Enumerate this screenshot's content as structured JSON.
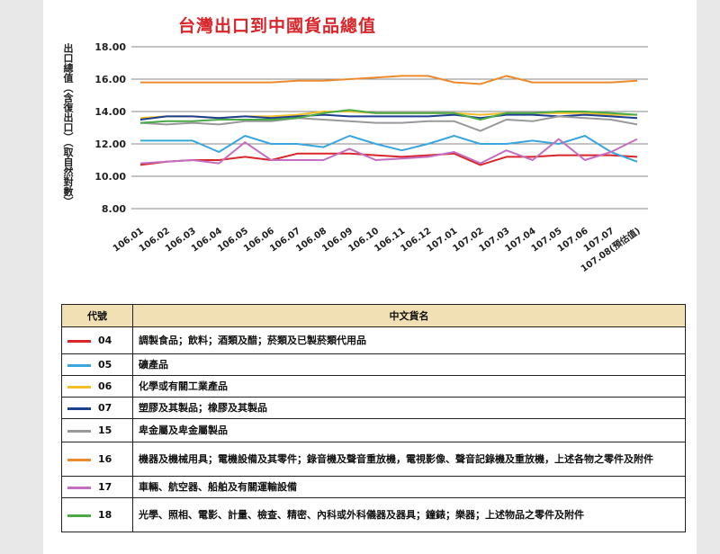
{
  "chart_data": {
    "type": "line",
    "title": "台灣出口到中國貨品總值",
    "ylabel": "出口總值（含復出口）（取自然對數）",
    "ylim": [
      6.0,
      18.0
    ],
    "yticks": [
      "18.00",
      "16.00",
      "14.00",
      "12.00",
      "10.00",
      "8.00"
    ],
    "ytick_values": [
      18,
      16,
      14,
      12,
      10,
      8
    ],
    "categories": [
      "106.01",
      "106.02",
      "106.03",
      "106.04",
      "106.05",
      "106.06",
      "106.07",
      "106.08",
      "106.09",
      "106.10",
      "106.11",
      "106.12",
      "107.01",
      "107.02",
      "107.03",
      "107.04",
      "107.05",
      "107.06",
      "107.07",
      "107.08(預估值)"
    ],
    "grid": true,
    "series": [
      {
        "name": "04",
        "color": "#d8262b",
        "values": [
          10.7,
          10.9,
          11.0,
          11.0,
          11.2,
          11.0,
          11.4,
          11.4,
          11.4,
          11.3,
          11.2,
          11.3,
          11.4,
          10.7,
          11.2,
          11.2,
          11.3,
          11.3,
          11.3,
          11.2
        ]
      },
      {
        "name": "05",
        "color": "#3aa6de",
        "values": [
          12.2,
          12.2,
          12.2,
          11.5,
          12.5,
          12.0,
          12.0,
          11.8,
          12.5,
          12.0,
          11.6,
          12.0,
          12.5,
          12.0,
          12.0,
          12.2,
          12.0,
          12.5,
          11.5,
          10.9
        ]
      },
      {
        "name": "06",
        "color": "#f2bf2a",
        "values": [
          13.6,
          13.7,
          13.7,
          13.6,
          13.7,
          13.7,
          13.8,
          14.0,
          14.0,
          13.9,
          13.9,
          13.9,
          13.9,
          13.8,
          13.9,
          13.9,
          13.9,
          13.9,
          13.8,
          13.8
        ]
      },
      {
        "name": "07",
        "color": "#1d3f8f",
        "values": [
          13.5,
          13.7,
          13.7,
          13.6,
          13.7,
          13.6,
          13.7,
          13.8,
          13.7,
          13.7,
          13.7,
          13.7,
          13.8,
          13.6,
          13.8,
          13.8,
          13.7,
          13.8,
          13.7,
          13.6
        ]
      },
      {
        "name": "15",
        "color": "#999999",
        "values": [
          13.3,
          13.2,
          13.3,
          13.2,
          13.4,
          13.4,
          13.6,
          13.5,
          13.4,
          13.3,
          13.3,
          13.4,
          13.4,
          12.8,
          13.5,
          13.4,
          13.7,
          13.6,
          13.5,
          13.2
        ]
      },
      {
        "name": "16",
        "color": "#ee8a2e",
        "values": [
          15.8,
          15.8,
          15.8,
          15.8,
          15.8,
          15.8,
          15.9,
          15.9,
          16.0,
          16.1,
          16.2,
          16.2,
          15.8,
          15.7,
          16.2,
          15.8,
          15.8,
          15.8,
          15.8,
          15.9
        ]
      },
      {
        "name": "17",
        "color": "#c36fc0",
        "values": [
          10.8,
          10.9,
          11.0,
          10.8,
          12.1,
          11.0,
          11.0,
          11.0,
          11.7,
          11.0,
          11.1,
          11.2,
          11.5,
          10.8,
          11.6,
          11.0,
          12.3,
          11.0,
          11.5,
          12.3
        ]
      },
      {
        "name": "18",
        "color": "#4aaa48",
        "values": [
          13.3,
          13.4,
          13.4,
          13.5,
          13.5,
          13.5,
          13.6,
          13.9,
          14.1,
          13.9,
          13.9,
          13.9,
          13.9,
          13.5,
          13.9,
          13.9,
          14.0,
          14.0,
          13.9,
          13.8
        ]
      }
    ]
  },
  "legend": {
    "header_code": "代號",
    "header_name": "中文貨名",
    "rows": [
      {
        "code": "04",
        "color": "#d8262b",
        "name": "調製食品；飲料；酒類及醋；菸類及已製菸類代用品"
      },
      {
        "code": "05",
        "color": "#3aa6de",
        "name": "礦產品"
      },
      {
        "code": "06",
        "color": "#f2bf2a",
        "name": "化學或有關工業產品"
      },
      {
        "code": "07",
        "color": "#1d3f8f",
        "name": "塑膠及其製品；橡膠及其製品"
      },
      {
        "code": "15",
        "color": "#999999",
        "name": "卑金屬及卑金屬製品"
      },
      {
        "code": "16",
        "color": "#ee8a2e",
        "name": "機器及機械用具；電機設備及其零件；錄音機及聲音重放機，電視影像、聲音記錄機及重放機，上述各物之零件及附件"
      },
      {
        "code": "17",
        "color": "#c36fc0",
        "name": "車輛、航空器、船舶及有關運輸設備"
      },
      {
        "code": "18",
        "color": "#4aaa48",
        "name": "光學、照相、電影、計量、檢查、精密、內科或外科儀器及器具；鐘錶；樂器；上述物品之零件及附件"
      }
    ]
  }
}
